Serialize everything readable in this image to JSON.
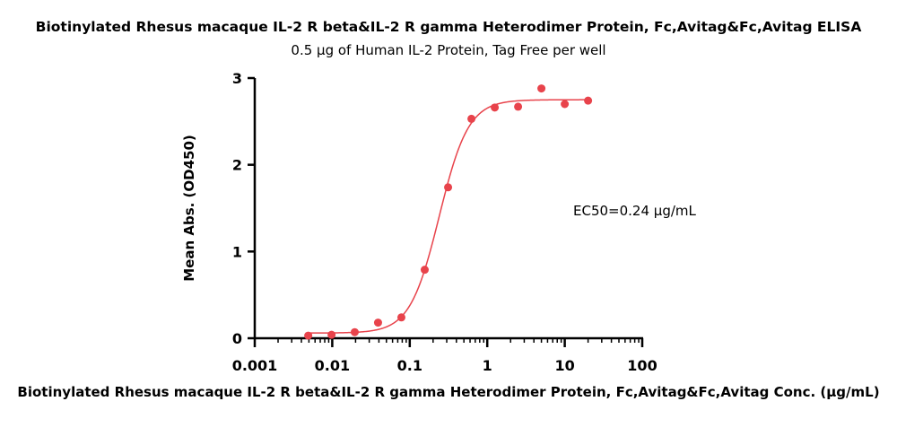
{
  "chart_data": {
    "type": "scatter",
    "title": "Biotinylated Rhesus macaque IL-2 R beta&IL-2 R gamma Heterodimer Protein, Fc,Avitag&Fc,Avitag ELISA",
    "subtitle": "0.5 μg of Human IL-2 Protein, Tag Free per well",
    "xlabel": "Biotinylated Rhesus macaque IL-2 R beta&IL-2 R gamma Heterodimer Protein, Fc,Avitag&Fc,Avitag Conc. (μg/mL)",
    "ylabel": "Mean Abs. (OD450)",
    "x_scale": "log",
    "xlim": [
      0.001,
      100
    ],
    "ylim": [
      0,
      3
    ],
    "x_ticks": [
      "0.001",
      "0.01",
      "0.1",
      "1",
      "10",
      "100"
    ],
    "y_ticks": [
      "0",
      "1",
      "2",
      "3"
    ],
    "annotation": "EC50=0.24 μg/mL",
    "color": "#e8434b",
    "grid": false,
    "series": [
      {
        "x": [
          0.0049,
          0.0098,
          0.0195,
          0.039,
          0.078,
          0.156,
          0.3125,
          0.625,
          1.25,
          2.5,
          5,
          10,
          20
        ],
        "y": [
          0.03,
          0.04,
          0.07,
          0.18,
          0.24,
          0.79,
          1.74,
          2.53,
          2.66,
          2.67,
          2.88,
          2.7,
          2.74
        ]
      }
    ],
    "fit": {
      "model": "4PL",
      "bottom": 0.06,
      "top": 2.75,
      "ec50": 0.24,
      "hill": 2.3
    }
  }
}
